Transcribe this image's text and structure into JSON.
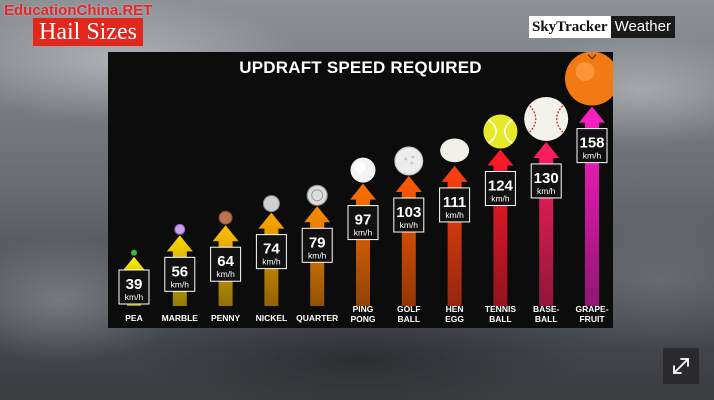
{
  "watermark": "EducationChina.RET",
  "header": {
    "title": "Hail Sizes"
  },
  "brand": {
    "part1": "SkyTracker",
    "part2": "Weather"
  },
  "icons": {
    "expand": "expand-icon"
  },
  "chart_data": {
    "type": "bar",
    "title": "UPDRAFT SPEED REQUIRED",
    "unit": "km/h",
    "categories": [
      [
        "PEA"
      ],
      [
        "MARBLE"
      ],
      [
        "PENNY"
      ],
      [
        "NICKEL"
      ],
      [
        "QUARTER"
      ],
      [
        "PING",
        "PONG"
      ],
      [
        "GOLF",
        "BALL"
      ],
      [
        "HEN",
        "EGG"
      ],
      [
        "TENNIS",
        "BALL"
      ],
      [
        "BASE-",
        "BALL"
      ],
      [
        "GRAPE-",
        "FRUIT"
      ]
    ],
    "values": [
      39,
      56,
      64,
      74,
      79,
      97,
      103,
      111,
      124,
      130,
      158
    ],
    "colors": [
      "#fff200",
      "#ffd800",
      "#ffc000",
      "#ffa800",
      "#ff8c00",
      "#ff7000",
      "#ff5a00",
      "#ff4010",
      "#ff1a2a",
      "#ff1e62",
      "#ff1ec8"
    ],
    "objects": [
      "pea",
      "marble",
      "penny",
      "nickel",
      "quarter",
      "ping-pong-ball",
      "golf-ball",
      "hen-egg",
      "tennis-ball",
      "baseball",
      "grapefruit"
    ]
  }
}
